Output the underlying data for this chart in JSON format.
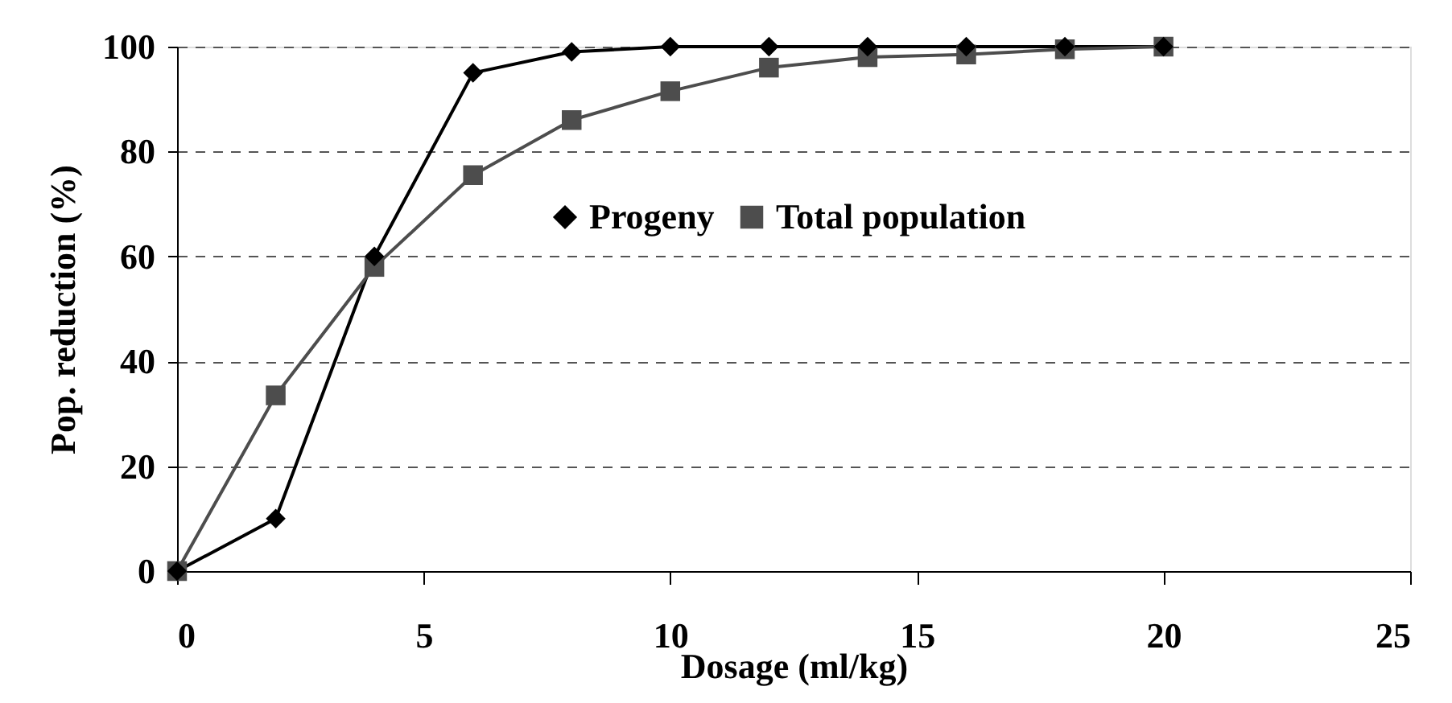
{
  "chart_data": {
    "type": "line",
    "xlabel": "Dosage (ml/kg)",
    "ylabel": "Pop. reduction (%)",
    "x": [
      0,
      2,
      4,
      6,
      8,
      10,
      12,
      14,
      16,
      18,
      20
    ],
    "series": [
      {
        "name": "Progeny",
        "color": "#000000",
        "marker": "diamond",
        "values": [
          0,
          10,
          60,
          95,
          99,
          100,
          100,
          100,
          100,
          100,
          100
        ]
      },
      {
        "name": "Total population",
        "color": "#4d4d4d",
        "marker": "square",
        "values": [
          0,
          33.5,
          58,
          75.5,
          86,
          91.5,
          96,
          98,
          98.5,
          99.5,
          100
        ]
      }
    ],
    "xlim": [
      0,
      25
    ],
    "xticks": [
      0,
      5,
      10,
      15,
      20,
      25
    ],
    "ylim": [
      0,
      100
    ],
    "yticks": [
      0,
      20,
      40,
      60,
      80,
      100
    ],
    "grid": "y",
    "legend": "right",
    "line_style": "solid"
  }
}
